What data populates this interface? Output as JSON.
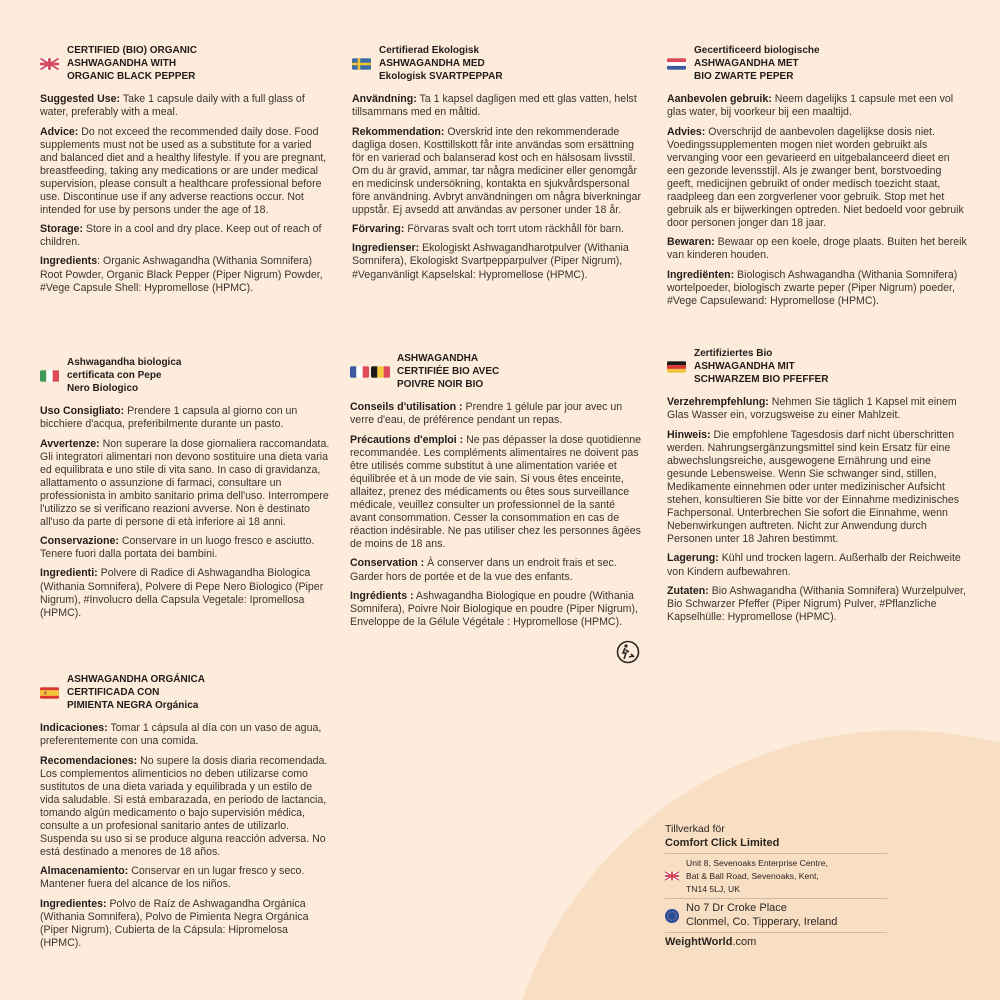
{
  "colors": {
    "background": "#fdecdb",
    "circle": "#f8dec3",
    "text": "#2b2622"
  },
  "sections": [
    {
      "id": "en",
      "flags": [
        "uk"
      ],
      "title": [
        "CERTIFIED (BIO) ORGANIC",
        "ASHWAGANDHA WITH",
        "ORGANIC BLACK PEPPER"
      ],
      "paragraphs": [
        {
          "label": "Suggested Use:",
          "text": " Take 1 capsule daily with a full glass of water, preferably with a meal."
        },
        {
          "label": "Advice:",
          "text": " Do not exceed the recommended daily dose. Food supplements must not be used as a substitute for a varied and balanced diet and a healthy lifestyle. If you are pregnant, breastfeeding, taking any medications or are under medical supervision, please consult a healthcare professional before use. Discontinue use if any adverse reactions occur. Not intended for use by persons under the age of 18."
        },
        {
          "label": "Storage:",
          "text": " Store in a cool and dry place. Keep out of reach of children."
        },
        {
          "label": "Ingredients",
          "text": ": Organic Ashwagandha (Withania Somnifera) Root Powder, Organic Black Pepper (Piper Nigrum) Powder, #Vege Capsule Shell: Hypromellose (HPMC)."
        }
      ]
    },
    {
      "id": "sv",
      "flags": [
        "se"
      ],
      "title": [
        "Certifierad Ekologisk",
        "ASHWAGANDHA MED",
        "Ekologisk SVARTPEPPAR"
      ],
      "paragraphs": [
        {
          "label": "Användning:",
          "text": " Ta 1 kapsel dagligen med ett glas vatten, helst tillsammans med en måltid."
        },
        {
          "label": "Rekommendation:",
          "text": " Overskrid inte den rekommenderade dagliga dosen. Kosttillskott får inte användas som ersättning för en varierad och balanserad kost och en hälsosam livsstil. Om du är gravid, ammar, tar några mediciner eller genomgår en medicinsk undersökning, kontakta en sjukvårdspersonal före användning. Avbryt användningen om några biverkningar uppstår. Ej avsedd att användas av personer under 18 år."
        },
        {
          "label": "Förvaring:",
          "text": " Förvaras svalt och torrt utom räckhåll för barn."
        },
        {
          "label": "Ingredienser:",
          "text": " Ekologiskt Ashwagandharotpulver (Withania Somnifera), Ekologiskt Svartpepparpulver (Piper Nigrum), #Veganvänligt Kapselskal: Hypromellose (HPMC)."
        }
      ]
    },
    {
      "id": "nl",
      "flags": [
        "nl"
      ],
      "title": [
        "Gecertificeerd biologische",
        "ASHWAGANDHA MET",
        "BIO ZWARTE PEPER"
      ],
      "paragraphs": [
        {
          "label": "Aanbevolen gebruik:",
          "text": " Neem dagelijks 1 capsule met een vol glas water, bij voorkeur bij een maaltijd."
        },
        {
          "label": "Advies:",
          "text": " Overschrijd de aanbevolen dagelijkse dosis niet. Voedingssupplementen mogen niet worden gebruikt als vervanging voor een gevarieerd en uitgebalanceerd dieet en een gezonde levensstijl. Als je zwanger bent, borstvoeding geeft, medicijnen gebruikt of onder medisch toezicht staat, raadpleeg dan een zorgverlener voor gebruik. Stop met het gebruik als er bijwerkingen optreden. Niet bedoeld voor gebruik door personen jonger dan 18 jaar."
        },
        {
          "label": "Bewaren:",
          "text": " Bewaar op een koele, droge plaats. Buiten het bereik van kinderen houden."
        },
        {
          "label": "Ingrediënten:",
          "text": " Biologisch Ashwagandha (Withania Somnifera) wortelpoeder, biologisch zwarte peper (Piper Nigrum) poeder, #Vege Capsulewand: Hypromellose (HPMC)."
        }
      ]
    },
    {
      "id": "it",
      "flags": [
        "it"
      ],
      "title": [
        "Ashwagandha biologica",
        "certificata con Pepe",
        "Nero Biologico"
      ],
      "paragraphs": [
        {
          "label": "Uso Consigliato:",
          "text": " Prendere 1 capsula al giorno con un bicchiere d'acqua, preferibilmente durante un pasto."
        },
        {
          "label": "Avvertenze:",
          "text": " Non superare la dose giornaliera raccomandata. Gli integratori alimentari non devono sostituire una dieta varia ed equilibrata e uno stile di vita sano. In caso di gravidanza, allattamento o assunzione di farmaci, consultare un professionista in ambito sanitario prima dell'uso. Interrompere l'utilizzo se si verificano reazioni avverse. Non è destinato all'uso da parte di persone di età inferiore ai 18 anni."
        },
        {
          "label": "Conservazione:",
          "text": " Conservare in un luogo fresco e asciutto. Tenere fuori dalla portata dei bambini."
        },
        {
          "label": "Ingredienti:",
          "text": " Polvere di Radice di Ashwagandha Biologica (Withania Somnifera), Polvere di Pepe Nero Biologico (Piper Nigrum), #Involucro della Capsula Vegetale: Ipromellosa (HPMC)."
        }
      ]
    },
    {
      "id": "fr",
      "flags": [
        "fr",
        "be"
      ],
      "title": [
        "ASHWAGANDHA",
        "CERTIFIÉE BIO AVEC",
        "POIVRE NOIR BIO"
      ],
      "paragraphs": [
        {
          "label": "Conseils d'utilisation :",
          "text": " Prendre 1 gélule par jour avec un verre d'eau, de préférence pendant un repas."
        },
        {
          "label": "Précautions d'emploi :",
          "text": " Ne pas dépasser la dose quotidienne recommandée. Les compléments alimentaires ne doivent pas être utilisés comme substitut à une alimentation variée et équilibrée et à un mode de vie sain. Si vous êtes enceinte, allaitez, prenez des médicaments ou êtes sous surveillance médicale, veuillez consulter un professionnel de la santé avant consommation. Cesser la consommation en cas de réaction indésirable. Ne pas utiliser chez les personnes âgées de moins de 18 ans."
        },
        {
          "label": "Conservation :",
          "text": " À conserver dans un endroit frais et sec. Garder hors de portée et de la vue des enfants."
        },
        {
          "label": "Ingrédients :",
          "text": " Ashwagandha Biologique en poudre (Withania Somnifera), Poivre Noir Biologique en poudre (Piper Nigrum), Enveloppe de la Gélule Végétale : Hypromellose (HPMC)."
        }
      ]
    },
    {
      "id": "de",
      "flags": [
        "de"
      ],
      "title": [
        "Zertifiziertes Bio",
        "ASHWAGANDHA MIT",
        "SCHWARZEM BIO PFEFFER"
      ],
      "paragraphs": [
        {
          "label": "Verzehrempfehlung:",
          "text": " Nehmen Sie täglich 1 Kapsel mit einem Glas Wasser ein, vorzugsweise zu einer Mahlzeit."
        },
        {
          "label": "Hinweis:",
          "text": " Die empfohlene Tagesdosis darf nicht überschritten werden. Nahrungsergänzungsmittel sind kein Ersatz für eine abwechslungsreiche, ausgewogene Ernährung und eine gesunde Lebensweise. Wenn Sie schwanger sind, stillen, Medikamente einnehmen oder unter medizinischer Aufsicht stehen, konsultieren Sie bitte vor der Einnahme medizinisches Fachpersonal. Unterbrechen Sie sofort die Einnahme, wenn Nebenwirkungen auftreten. Nicht zur Anwendung durch Personen unter 18 Jahren bestimmt."
        },
        {
          "label": "Lagerung:",
          "text": " Kühl und trocken lagern. Außerhalb der Reichweite von Kindern aufbewahren."
        },
        {
          "label": "Zutaten:",
          "text": " Bio Ashwagandha (Withania Somnifera) Wurzelpulver, Bio Schwarzer Pfeffer (Piper Nigrum) Pulver, #Pflanzliche Kapselhülle: Hypromellose (HPMC)."
        }
      ]
    },
    {
      "id": "es",
      "flags": [
        "es"
      ],
      "title": [
        "ASHWAGANDHA ORGÁNICA",
        "CERTIFICADA CON",
        "PIMIENTA NEGRA Orgánica"
      ],
      "paragraphs": [
        {
          "label": "Indicaciones:",
          "text": " Tomar 1 cápsula al día con un vaso de agua, preferentemente con una comida."
        },
        {
          "label": "Recomendaciones:",
          "text": " No supere la dosis diaria recomendada. Los complementos alimenticios no deben utilizarse como sustitutos de una dieta variada y equilibrada y un estilo de vida saludable. Si está embarazada, en periodo de lactancia, tomando algún medicamento o bajo supervisión médica, consulte a un profesional sanitario antes de utilizarlo. Suspenda su uso si se produce alguna reacción adversa. No está destinado a menores de 18 años."
        },
        {
          "label": "Almacenamiento:",
          "text": " Conservar en un lugar fresco y seco. Mantener fuera del alcance de los niños."
        },
        {
          "label": "Ingredientes:",
          "text": " Polvo de Raíz de Ashwagandha Orgánica (Withania Somnifera), Polvo de Pimienta Negra Orgánica (Piper Nigrum), Cubierta de la Cápsula: Hipromelosa (HPMC)."
        }
      ]
    }
  ],
  "manufacturer": {
    "made_for": "Tillverkad för",
    "company": "Comfort Click Limited",
    "uk_address": [
      "Unit 8, Sevenoaks Enterprise Centre,",
      "Bat & Ball Road, Sevenoaks, Kent,",
      "TN14 5LJ, UK"
    ],
    "eu_address": [
      "No 7 Dr Croke Place",
      "Clonmel, Co. Tipperary, Ireland"
    ],
    "website_brand": "WeightWorld",
    "website_tld": ".com"
  },
  "icons": {
    "recycle": "tidyman-recycle-icon"
  }
}
